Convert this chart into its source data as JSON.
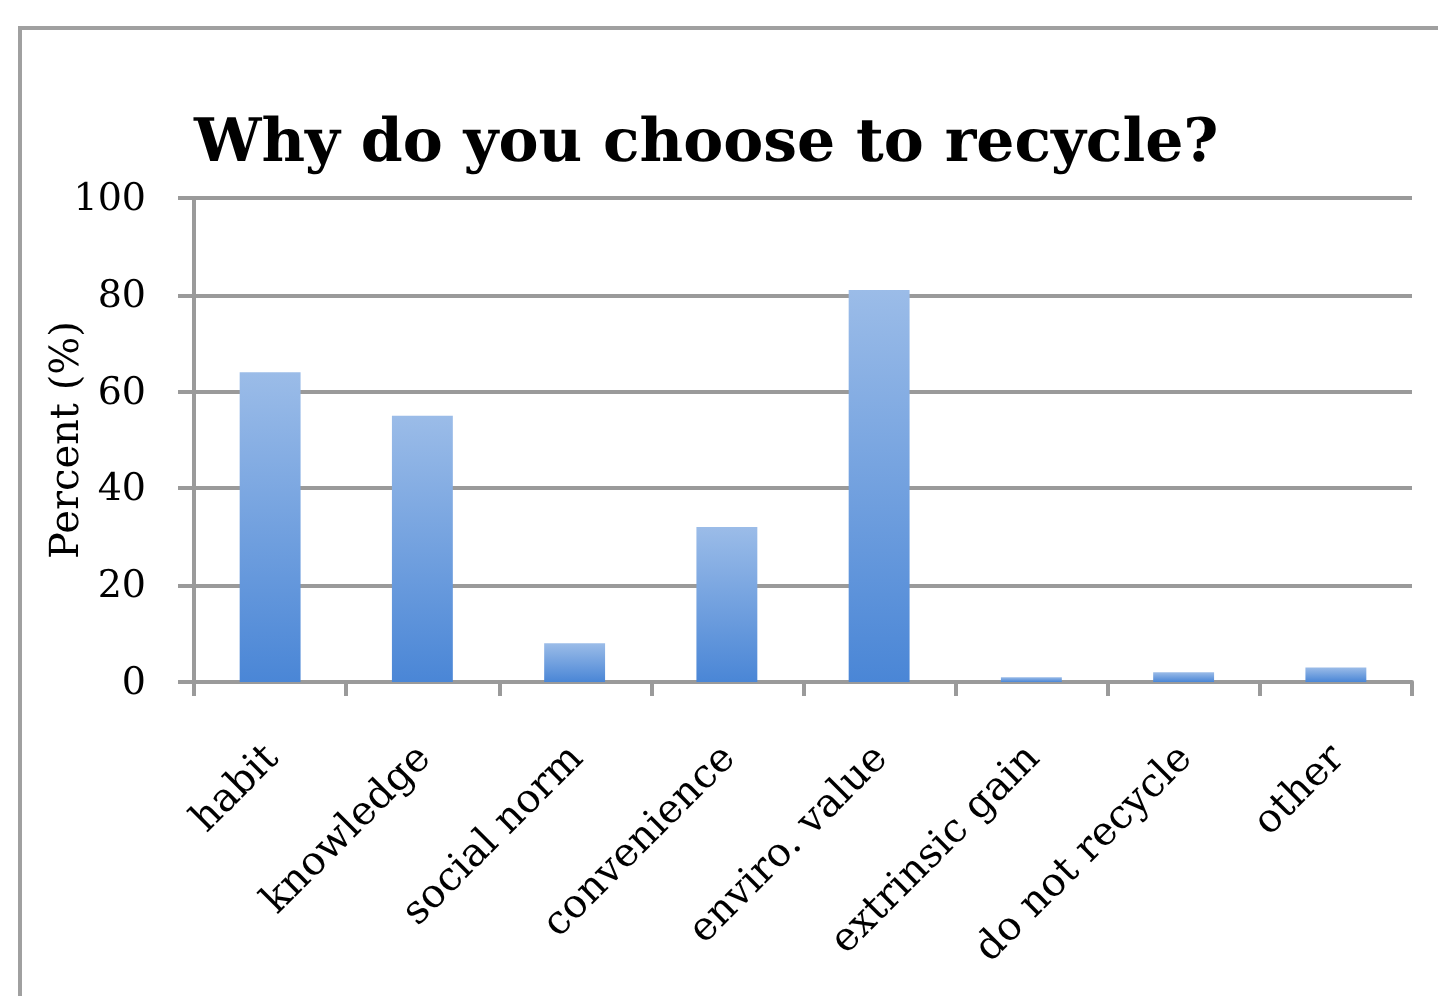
{
  "chart_data": {
    "type": "bar",
    "title": "Why do you choose to recycle?",
    "ylabel": "Percent (%)",
    "categories": [
      "habit",
      "knowledge",
      "social norm",
      "convenience",
      "enviro. value",
      "extrinsic gain",
      "do not recycle",
      "other"
    ],
    "values": [
      64,
      55,
      8,
      32,
      81,
      1,
      2,
      3
    ],
    "color": "#4a86d6",
    "ylim": [
      0,
      100
    ],
    "yticks": [
      0,
      20,
      40,
      60,
      80,
      100
    ],
    "grid": "y"
  }
}
